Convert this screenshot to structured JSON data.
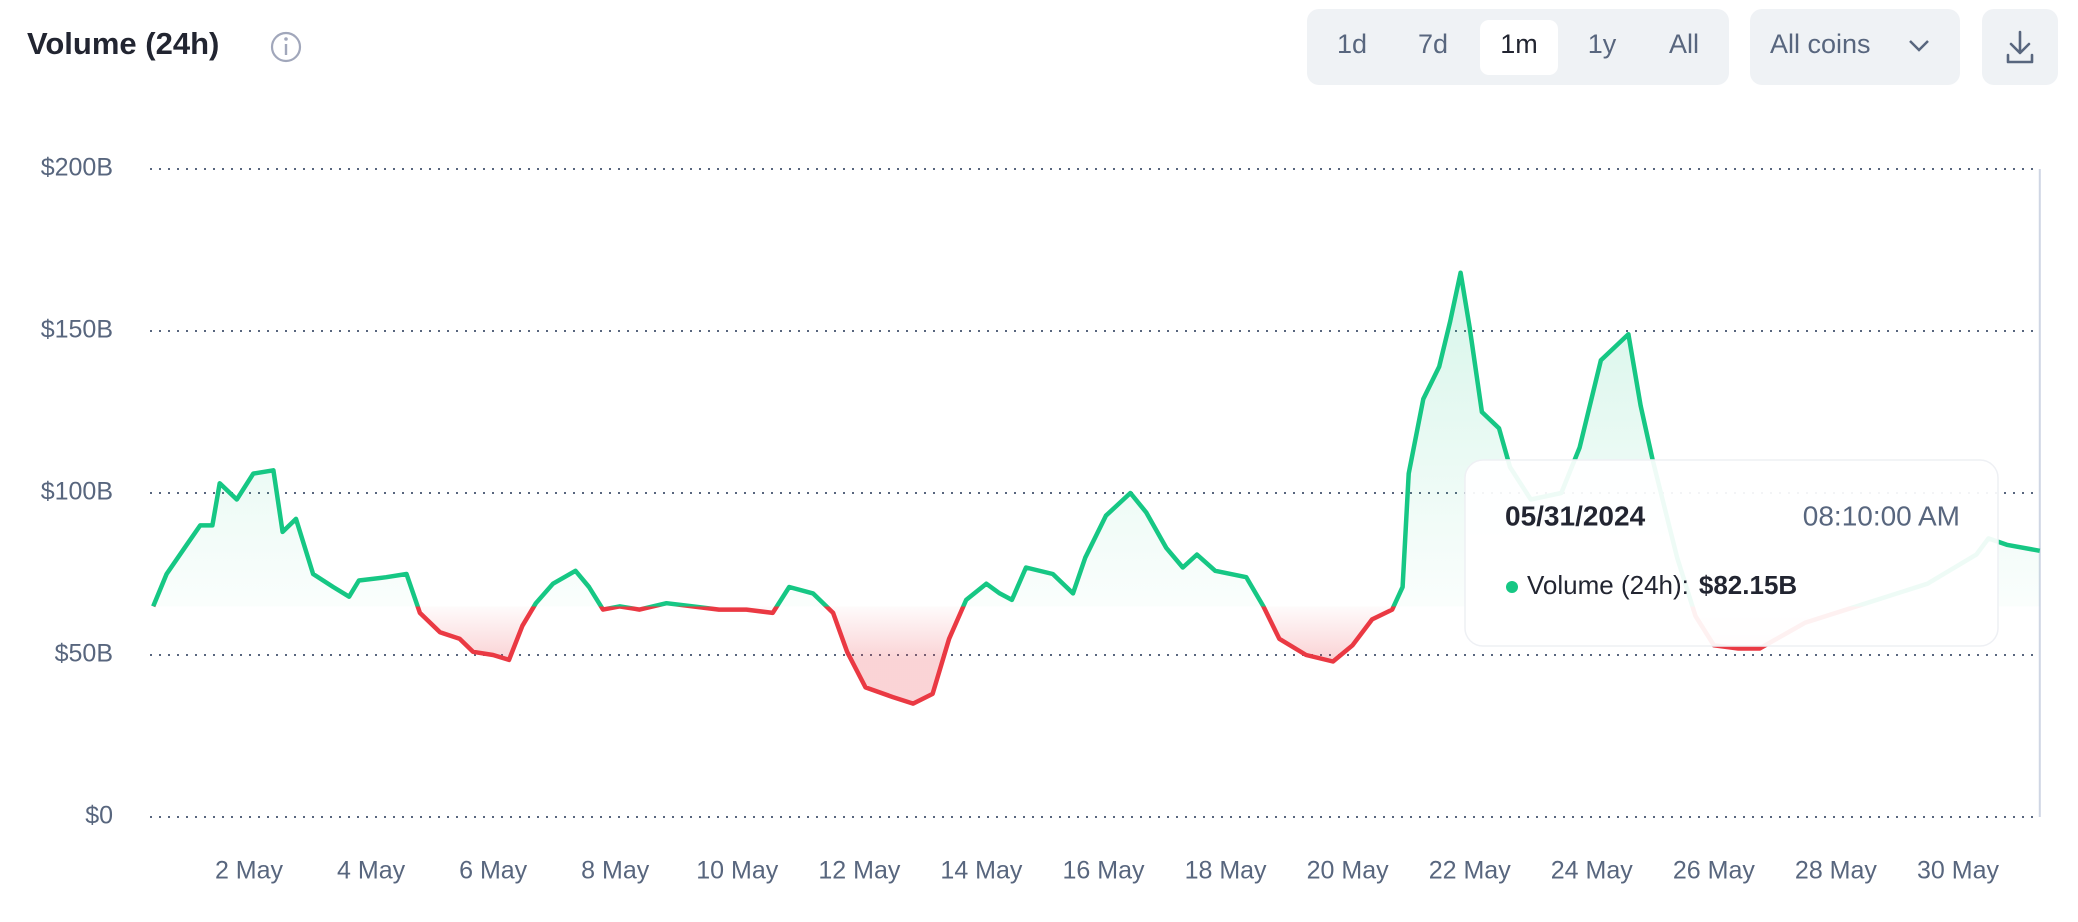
{
  "header": {
    "title": "Volume (24h)"
  },
  "controls": {
    "ranges": [
      "1d",
      "7d",
      "1m",
      "1y",
      "All"
    ],
    "active_range": "1m",
    "filter": "All coins"
  },
  "chart_data": {
    "type": "line",
    "x": [
      0.43,
      0.65,
      0.98,
      1.2,
      1.4,
      1.52,
      1.8,
      2.07,
      2.4,
      2.55,
      2.77,
      3.05,
      3.38,
      3.64,
      3.8,
      4.25,
      4.58,
      4.8,
      5.13,
      5.45,
      5.67,
      6.0,
      6.26,
      6.48,
      6.7,
      6.98,
      7.35,
      7.57,
      7.8,
      8.07,
      8.4,
      8.84,
      9.27,
      9.7,
      10.15,
      10.58,
      10.85,
      11.24,
      11.57,
      11.8,
      12.1,
      12.55,
      12.88,
      13.2,
      13.47,
      13.75,
      14.08,
      14.3,
      14.5,
      14.73,
      15.17,
      15.5,
      15.7,
      16.04,
      16.44,
      16.7,
      17.03,
      17.3,
      17.53,
      17.83,
      18.34,
      18.62,
      18.88,
      19.32,
      19.76,
      20.08,
      20.4,
      20.73,
      20.9,
      21.0,
      21.24,
      21.5,
      21.68,
      21.85,
      22.0,
      22.2,
      22.48,
      22.66,
      23.0,
      23.5,
      23.8,
      24.15,
      24.6,
      24.8,
      25.0,
      25.4,
      25.7,
      26.0,
      26.4,
      26.75,
      27.5,
      28.5,
      29.5,
      30.3,
      30.5,
      30.8,
      31.34
    ],
    "values": [
      65,
      75,
      84,
      90,
      90,
      103,
      98,
      106,
      107,
      88,
      92,
      75,
      71,
      68,
      73,
      74,
      75,
      63,
      57,
      55,
      51,
      50,
      48.5,
      59,
      66,
      72,
      76,
      71,
      64,
      65,
      64,
      66,
      65,
      64,
      64,
      63,
      71,
      69,
      63,
      51,
      40,
      37,
      35,
      38,
      55,
      67,
      72,
      69,
      67,
      77,
      75,
      69,
      80,
      93,
      100,
      94,
      83,
      77,
      81,
      76,
      74,
      65,
      55,
      50,
      48,
      53,
      61,
      64,
      71,
      106,
      129,
      139,
      153,
      168,
      151,
      125,
      120,
      108,
      98,
      100,
      114,
      141,
      149,
      127,
      110,
      80,
      62,
      53,
      52,
      52,
      60,
      66,
      72,
      81,
      86,
      84,
      82.15
    ],
    "color": "#16c784",
    "down_color": "#ea3943",
    "xlim": [
      0.43,
      31.34
    ],
    "xticks": [
      {
        "value": 2,
        "label": "2 May"
      },
      {
        "value": 4,
        "label": "4 May"
      },
      {
        "value": 6,
        "label": "6 May"
      },
      {
        "value": 8,
        "label": "8 May"
      },
      {
        "value": 10,
        "label": "10 May"
      },
      {
        "value": 12,
        "label": "12 May"
      },
      {
        "value": 14,
        "label": "14 May"
      },
      {
        "value": 16,
        "label": "16 May"
      },
      {
        "value": 18,
        "label": "18 May"
      },
      {
        "value": 20,
        "label": "20 May"
      },
      {
        "value": 22,
        "label": "22 May"
      },
      {
        "value": 24,
        "label": "24 May"
      },
      {
        "value": 26,
        "label": "26 May"
      },
      {
        "value": 28,
        "label": "28 May"
      },
      {
        "value": 30,
        "label": "30 May"
      }
    ],
    "ylim": [
      0,
      200
    ],
    "yticks": [
      {
        "value": 0,
        "label": "$0"
      },
      {
        "value": 50,
        "label": "$50B"
      },
      {
        "value": 100,
        "label": "$100B"
      },
      {
        "value": 150,
        "label": "$150B"
      },
      {
        "value": 200,
        "label": "$200B"
      }
    ],
    "grid": true,
    "tooltip": {
      "date": "05/31/2024",
      "time": "08:10:00 AM",
      "label": "Volume (24h):",
      "value_label": "$82.15B"
    }
  }
}
